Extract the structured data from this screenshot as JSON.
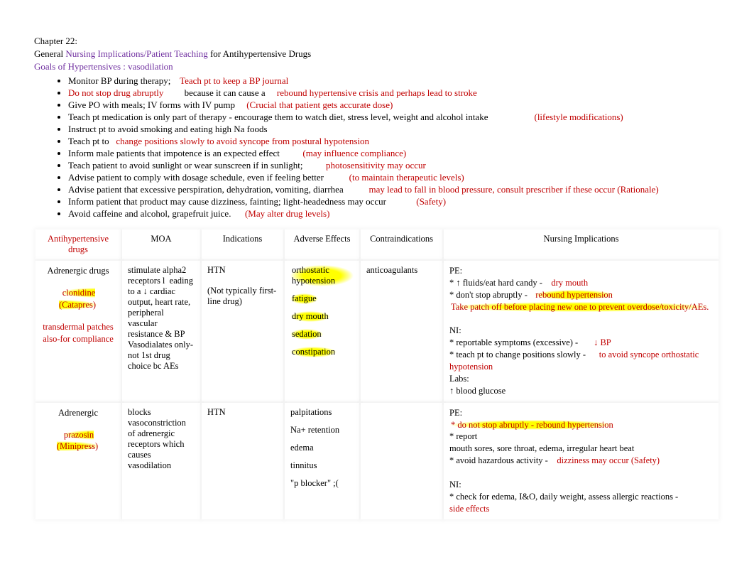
{
  "header": {
    "chapter": "Chapter 22:",
    "line2_black1": "General",
    "line2_purple": "  Nursing Implications/Patient Teaching",
    "line2_black2": "         for Antihypertensive Drugs",
    "goals": "Goals of Hypertensives : vasodilation"
  },
  "bullets": [
    {
      "parts": [
        {
          "t": "Monitor BP during therapy;    ",
          "c": "black"
        },
        {
          "t": "Teach pt to keep a BP journal",
          "c": "red"
        }
      ]
    },
    {
      "parts": [
        {
          "t": "Do not stop drug abruptly",
          "c": "red"
        },
        {
          "t": "         because it can cause a     ",
          "c": "black"
        },
        {
          "t": "rebound hypertensive crisis and perhaps lead to stroke",
          "c": "red"
        }
      ]
    },
    {
      "parts": [
        {
          "t": "Give PO with meals; IV forms with IV pump     ",
          "c": "black"
        },
        {
          "t": "(Crucial that patient gets accurate dose)",
          "c": "red"
        }
      ]
    },
    {
      "parts": [
        {
          "t": "Teach pt medication is only part of therapy - encourage them to watch diet, stress level, weight and alcohol intake",
          "c": "black"
        },
        {
          "t": "                    ",
          "c": "black"
        },
        {
          "t": "(lifestyle modifications)",
          "c": "red"
        }
      ]
    },
    {
      "parts": [
        {
          "t": "Instruct pt to avoid smoking and eating high Na foods",
          "c": "black"
        }
      ]
    },
    {
      "parts": [
        {
          "t": "Teach pt to   ",
          "c": "black"
        },
        {
          "t": "change positions slowly to avoid syncope from postural hypotension",
          "c": "red"
        }
      ]
    },
    {
      "parts": [
        {
          "t": "Inform male patients that impotence is an expected effect          ",
          "c": "black"
        },
        {
          "t": "(may influence compliance)",
          "c": "red"
        }
      ]
    },
    {
      "parts": [
        {
          "t": "Teach patient to avoid sunlight or wear sunscreen if in sunlight;          ",
          "c": "black"
        },
        {
          "t": "photosensitivity may occur",
          "c": "red"
        }
      ]
    },
    {
      "parts": [
        {
          "t": "Advise patient to comply with dosage schedule, even if feeling better           ",
          "c": "black"
        },
        {
          "t": "(to maintain therapeutic levels)",
          "c": "red"
        }
      ]
    },
    {
      "parts": [
        {
          "t": "Advise patient that excessive perspiration, dehydration, vomiting, diarrhea           ",
          "c": "black"
        },
        {
          "t": "may lead to fall in blood pressure, consult prescriber if these occur (Rationale)",
          "c": "red"
        }
      ]
    },
    {
      "parts": [
        {
          "t": "Inform patient that product may cause dizziness, fainting; light-headedness may occur             ",
          "c": "black"
        },
        {
          "t": "(Safety)",
          "c": "red"
        }
      ]
    },
    {
      "parts": [
        {
          "t": "Avoid caffeine and alcohol, grapefruit juice.      ",
          "c": "black"
        },
        {
          "t": "(May alter drug levels)",
          "c": "red"
        }
      ]
    }
  ],
  "table": {
    "columns": [
      {
        "label": "Antihypertensive drugs",
        "color": "red"
      },
      {
        "label": "MOA",
        "color": "black"
      },
      {
        "label": "Indications",
        "color": "black"
      },
      {
        "label": "Adverse Effects",
        "color": "black"
      },
      {
        "label": "Contraindications",
        "color": "black"
      },
      {
        "label": "Nursing Implications",
        "color": "black"
      }
    ],
    "rows": [
      {
        "drug": {
          "class_line": "Adrenergic drugs",
          "name_hl": "clonidine (Catapres)",
          "sub_red": "transdermal patches also-for compliance"
        },
        "moa": "stimulate alpha2 receptors l  eading to a ↓ cardiac output, heart rate, peripheral vascular resistance & BP\nVasodialates only- not 1st drug choice bc AEs",
        "indications": {
          "main": "HTN",
          "sub": "(Not typically first-line drug)"
        },
        "ae": [
          {
            "t": "orthostatic hypotension",
            "hl": true
          },
          {
            "t": "fatigue",
            "hl": true
          },
          {
            "t": "dry mouth",
            "hl": true
          },
          {
            "t": "sedation",
            "hl": true
          },
          {
            "t": "constipation",
            "hl": true
          }
        ],
        "contra": "anticoagulants",
        "ni": {
          "lines": [
            {
              "segs": [
                {
                  "t": "PE:",
                  "c": "black"
                }
              ]
            },
            {
              "segs": [
                {
                  "t": "* ↑ fluids/eat hard candy -    ",
                  "c": "black"
                },
                {
                  "t": "dry mouth",
                  "c": "red"
                }
              ]
            },
            {
              "segs": [
                {
                  "t": "* don't stop abruptly -   ",
                  "c": "black"
                },
                {
                  "t": "rebound hypertension",
                  "c": "red",
                  "hl": true
                }
              ]
            },
            {
              "segs": [
                {
                  "t": "Take patch off before placing new one to prevent overdose/toxicity/AEs.",
                  "c": "red",
                  "hl": true
                }
              ]
            },
            {
              "segs": [
                {
                  "t": " ",
                  "c": "black"
                }
              ]
            },
            {
              "segs": [
                {
                  "t": "NI:",
                  "c": "black"
                }
              ]
            },
            {
              "segs": [
                {
                  "t": "* reportable symptoms (excessive) -       ",
                  "c": "black"
                },
                {
                  "t": "↓ BP",
                  "c": "red"
                }
              ]
            },
            {
              "segs": [
                {
                  "t": "* teach pt to change positions slowly -      ",
                  "c": "black"
                },
                {
                  "t": "to avoid syncope orthostatic hypotension",
                  "c": "red"
                }
              ]
            },
            {
              "segs": [
                {
                  "t": "Labs:",
                  "c": "black"
                }
              ]
            },
            {
              "segs": [
                {
                  "t": "↑ blood glucose",
                  "c": "black"
                }
              ]
            }
          ]
        }
      },
      {
        "drug": {
          "class_line": "Adrenergic",
          "name_hl": "prazosin (Minipress)",
          "sub_red": ""
        },
        "moa": "blocks vasoconstriction of adrenergic receptors which causes vasodilation",
        "indications": {
          "main": "HTN",
          "sub": ""
        },
        "ae": [
          {
            "t": "palpitations",
            "hl": false
          },
          {
            "t": "Na+ retention",
            "hl": false
          },
          {
            "t": "edema",
            "hl": false
          },
          {
            "t": "tinnitus",
            "hl": false
          },
          {
            "t": " \"p blocker\" ;(",
            "hl": false
          }
        ],
        "contra": "",
        "ni": {
          "lines": [
            {
              "segs": [
                {
                  "t": "PE:",
                  "c": "black"
                }
              ]
            },
            {
              "segs": [
                {
                  "t": "* do not stop abruptly - rebound hypertension",
                  "c": "red",
                  "hl": true
                }
              ]
            },
            {
              "segs": [
                {
                  "t": "* report",
                  "c": "black"
                }
              ]
            },
            {
              "segs": [
                {
                  "t": "mouth sores, sore throat, edema, irregular heart beat",
                  "c": "black"
                }
              ]
            },
            {
              "segs": [
                {
                  "t": "* avoid hazardous activity -    ",
                  "c": "black"
                },
                {
                  "t": "dizziness may occur (Safety)",
                  "c": "red"
                }
              ]
            },
            {
              "segs": [
                {
                  "t": " ",
                  "c": "black"
                }
              ]
            },
            {
              "segs": [
                {
                  "t": "NI:",
                  "c": "black"
                }
              ]
            },
            {
              "segs": [
                {
                  "t": "* check for edema, I&O, daily weight, assess allergic reactions - ",
                  "c": "black"
                }
              ]
            },
            {
              "segs": [
                {
                  "t": "side effects",
                  "c": "red"
                }
              ]
            }
          ]
        }
      }
    ]
  },
  "colors": {
    "red": "#c00000",
    "purple": "#7030a0",
    "highlight": "#ffff00",
    "black": "#000000"
  }
}
